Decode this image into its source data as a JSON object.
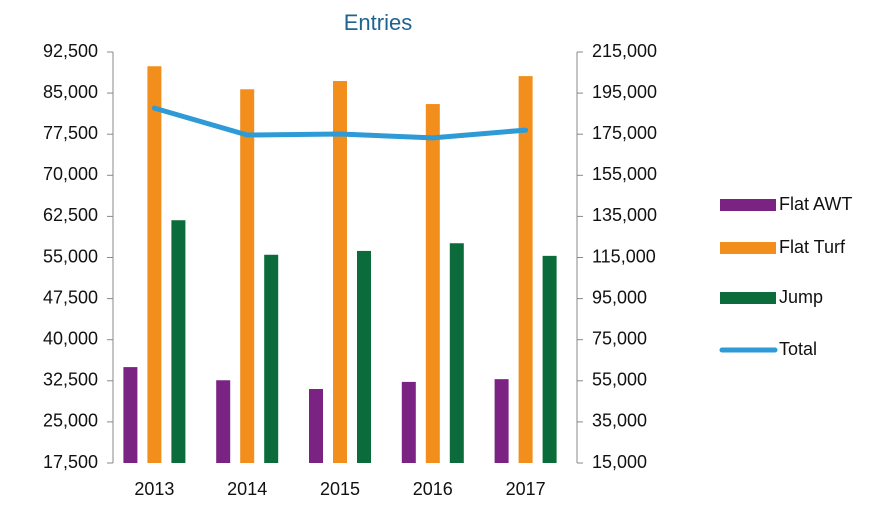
{
  "chart_data": {
    "type": "bar",
    "title": "Entries",
    "categories": [
      "2013",
      "2014",
      "2015",
      "2016",
      "2017"
    ],
    "series": [
      {
        "name": "Flat AWT",
        "color": "#7b2382",
        "values": [
          35000,
          32600,
          31000,
          32300,
          32800
        ]
      },
      {
        "name": "Flat Turf",
        "color": "#f28e1c",
        "values": [
          89900,
          85700,
          87200,
          83000,
          88100
        ]
      },
      {
        "name": "Jump",
        "color": "#0b6b3a",
        "values": [
          61800,
          55500,
          56200,
          57600,
          55300
        ]
      },
      {
        "name": "Total",
        "type": "line",
        "axis": "y2",
        "color": "#2e9bd6",
        "values": [
          187700,
          174600,
          175100,
          173200,
          177000
        ]
      }
    ],
    "ylim": [
      17500,
      92500
    ],
    "yticks": [
      {
        "value": 17500,
        "label": "17,500"
      },
      {
        "value": 25000,
        "label": "25,000"
      },
      {
        "value": 32500,
        "label": "32,500"
      },
      {
        "value": 40000,
        "label": "40,000"
      },
      {
        "value": 47500,
        "label": "47,500"
      },
      {
        "value": 55000,
        "label": "55,000"
      },
      {
        "value": 62500,
        "label": "62,500"
      },
      {
        "value": 70000,
        "label": "70,000"
      },
      {
        "value": 77500,
        "label": "77,500"
      },
      {
        "value": 85000,
        "label": "85,000"
      },
      {
        "value": 92500,
        "label": "92,500"
      }
    ],
    "y2lim": [
      15000,
      215000
    ],
    "y2ticks": [
      {
        "value": 15000,
        "label": "15,000"
      },
      {
        "value": 35000,
        "label": "35,000"
      },
      {
        "value": 55000,
        "label": "55,000"
      },
      {
        "value": 75000,
        "label": "75,000"
      },
      {
        "value": 95000,
        "label": "95,000"
      },
      {
        "value": 115000,
        "label": "115,000"
      },
      {
        "value": 135000,
        "label": "135,000"
      },
      {
        "value": 155000,
        "label": "155,000"
      },
      {
        "value": 175000,
        "label": "175,000"
      },
      {
        "value": 195000,
        "label": "195,000"
      },
      {
        "value": 215000,
        "label": "215,000"
      }
    ],
    "legend": "right",
    "grid": false
  }
}
